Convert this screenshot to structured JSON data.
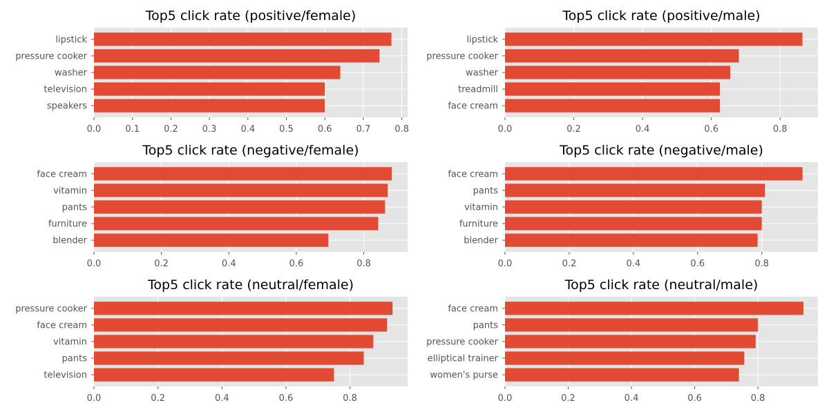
{
  "chart_data": [
    {
      "type": "bar",
      "orientation": "horizontal",
      "title": "Top5 click rate (positive/female)",
      "categories": [
        "lipstick",
        "pressure cooker",
        "washer",
        "television",
        "speakers"
      ],
      "values": [
        0.773,
        0.742,
        0.64,
        0.6,
        0.6
      ],
      "xlim": [
        0,
        0.815
      ],
      "xticks": [
        0,
        0.1,
        0.2,
        0.3,
        0.4,
        0.5,
        0.6,
        0.7,
        0.8
      ],
      "xtick_labels": [
        "0.0",
        "0.1",
        "0.2",
        "0.3",
        "0.4",
        "0.5",
        "0.6",
        "0.7",
        "0.8"
      ],
      "grid": true
    },
    {
      "type": "bar",
      "orientation": "horizontal",
      "title": "Top5 click rate (positive/male)",
      "categories": [
        "lipstick",
        "pressure cooker",
        "washer",
        "treadmill",
        "face cream"
      ],
      "values": [
        0.865,
        0.68,
        0.655,
        0.625,
        0.625
      ],
      "xlim": [
        0,
        0.91
      ],
      "xticks": [
        0,
        0.2,
        0.4,
        0.6,
        0.8
      ],
      "xtick_labels": [
        "0.0",
        "0.2",
        "0.4",
        "0.6",
        "0.8"
      ],
      "grid": true
    },
    {
      "type": "bar",
      "orientation": "horizontal",
      "title": "Top5 click rate (negative/female)",
      "categories": [
        "face cream",
        "vitamin",
        "pants",
        "furniture",
        "blender"
      ],
      "values": [
        0.883,
        0.871,
        0.863,
        0.843,
        0.695
      ],
      "xlim": [
        0,
        0.93
      ],
      "xticks": [
        0,
        0.2,
        0.4,
        0.6,
        0.8
      ],
      "xtick_labels": [
        "0.0",
        "0.2",
        "0.4",
        "0.6",
        "0.8"
      ],
      "grid": true
    },
    {
      "type": "bar",
      "orientation": "horizontal",
      "title": "Top5 click rate (negative/male)",
      "categories": [
        "face cream",
        "pants",
        "vitamin",
        "furniture",
        "blender"
      ],
      "values": [
        0.927,
        0.81,
        0.8,
        0.8,
        0.787
      ],
      "xlim": [
        0,
        0.975
      ],
      "xticks": [
        0,
        0.2,
        0.4,
        0.6,
        0.8
      ],
      "xtick_labels": [
        "0.0",
        "0.2",
        "0.4",
        "0.6",
        "0.8"
      ],
      "grid": true
    },
    {
      "type": "bar",
      "orientation": "horizontal",
      "title": "Top5 click rate (neutral/female)",
      "categories": [
        "pressure cooker",
        "face cream",
        "vitamin",
        "pants",
        "television"
      ],
      "values": [
        0.933,
        0.916,
        0.873,
        0.843,
        0.75
      ],
      "xlim": [
        0,
        0.98
      ],
      "xticks": [
        0,
        0.2,
        0.4,
        0.6,
        0.8
      ],
      "xtick_labels": [
        "0.0",
        "0.2",
        "0.4",
        "0.6",
        "0.8"
      ],
      "grid": true
    },
    {
      "type": "bar",
      "orientation": "horizontal",
      "title": "Top5 click rate (neutral/male)",
      "categories": [
        "face cream",
        "pants",
        "pressure cooker",
        "elliptical trainer",
        "women's purse"
      ],
      "values": [
        0.944,
        0.8,
        0.793,
        0.757,
        0.74
      ],
      "xlim": [
        0,
        0.99
      ],
      "xticks": [
        0,
        0.2,
        0.4,
        0.6,
        0.8
      ],
      "xtick_labels": [
        "0.0",
        "0.2",
        "0.4",
        "0.6",
        "0.8"
      ],
      "grid": true
    }
  ],
  "colors": {
    "bar": "#E24A33",
    "plot_bg": "#E5E5E5",
    "grid": "#FFFFFF",
    "tick_text": "#555555",
    "title_text": "#000000"
  }
}
